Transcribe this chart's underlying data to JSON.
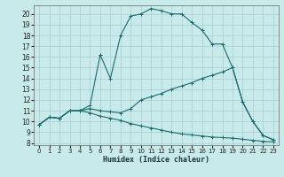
{
  "title": "",
  "xlabel": "Humidex (Indice chaleur)",
  "background_color": "#c8eaea",
  "grid_color": "#a8cece",
  "line_color": "#1a6b6b",
  "x_ticks": [
    0,
    1,
    2,
    3,
    4,
    5,
    6,
    7,
    8,
    9,
    10,
    11,
    12,
    13,
    14,
    15,
    16,
    17,
    18,
    19,
    20,
    21,
    22,
    23
  ],
  "y_ticks": [
    8,
    9,
    10,
    11,
    12,
    13,
    14,
    15,
    16,
    17,
    18,
    19,
    20
  ],
  "ylim": [
    7.8,
    20.8
  ],
  "xlim": [
    -0.5,
    23.5
  ],
  "series": [
    {
      "x": [
        0,
        1,
        2,
        3,
        4,
        5,
        6,
        7,
        8,
        9,
        10,
        11,
        12,
        13,
        14,
        15,
        16,
        17,
        18,
        19,
        20,
        21,
        22,
        23
      ],
      "y": [
        9.7,
        10.4,
        10.3,
        11.0,
        11.0,
        11.5,
        16.2,
        14.0,
        18.0,
        19.8,
        20.0,
        20.5,
        20.3,
        20.0,
        20.0,
        19.2,
        18.5,
        17.2,
        17.2,
        15.0,
        11.8,
        10.0,
        8.7,
        8.3
      ]
    },
    {
      "x": [
        0,
        1,
        2,
        3,
        4,
        5,
        6,
        7,
        8,
        9,
        10,
        11,
        12,
        13,
        14,
        15,
        16,
        17,
        18,
        19,
        20,
        21,
        22,
        23
      ],
      "y": [
        9.7,
        10.4,
        10.3,
        11.0,
        11.0,
        11.2,
        11.0,
        10.9,
        10.8,
        11.2,
        12.0,
        12.3,
        12.6,
        13.0,
        13.3,
        13.6,
        14.0,
        14.3,
        14.6,
        15.0,
        11.8,
        10.0,
        8.7,
        8.3
      ]
    },
    {
      "x": [
        0,
        1,
        2,
        3,
        4,
        5,
        6,
        7,
        8,
        9,
        10,
        11,
        12,
        13,
        14,
        15,
        16,
        17,
        18,
        19,
        20,
        21,
        22,
        23
      ],
      "y": [
        9.7,
        10.4,
        10.3,
        11.0,
        11.0,
        10.8,
        10.5,
        10.3,
        10.1,
        9.8,
        9.6,
        9.4,
        9.2,
        9.0,
        8.85,
        8.75,
        8.65,
        8.55,
        8.5,
        8.45,
        8.35,
        8.25,
        8.15,
        8.1
      ]
    }
  ]
}
